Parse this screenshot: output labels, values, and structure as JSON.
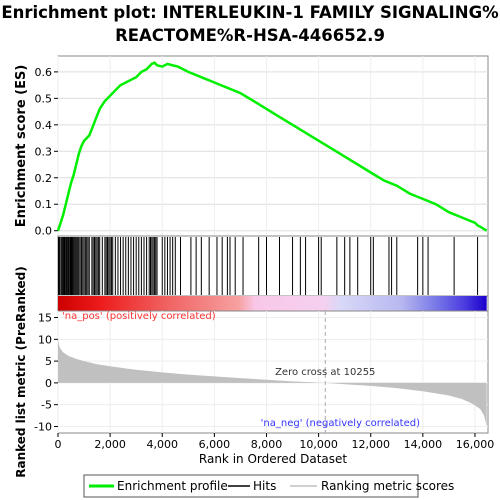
{
  "chart_data": {
    "type": "line",
    "title_line1": "Enrichment plot: INTERLEUKIN-1 FAMILY SIGNALING%",
    "title_line2": "REACTOME%R-HSA-446652.9",
    "top_panel": {
      "ylabel": "Enrichment score (ES)",
      "ylim": [
        -0.02,
        0.66
      ],
      "yticks": [
        0.0,
        0.1,
        0.2,
        0.3,
        0.4,
        0.5,
        0.6
      ],
      "ytick_labels": [
        "0.0",
        "0.1",
        "0.2",
        "0.3",
        "0.4",
        "0.5",
        "0.6"
      ],
      "series": [
        {
          "name": "Enrichment profile",
          "color": "#00ee00",
          "x": [
            0,
            100,
            200,
            300,
            400,
            500,
            600,
            700,
            800,
            900,
            1000,
            1200,
            1400,
            1600,
            1800,
            2000,
            2200,
            2400,
            2600,
            2800,
            3000,
            3200,
            3400,
            3600,
            3700,
            3800,
            4000,
            4200,
            4400,
            4600,
            5000,
            5500,
            6000,
            6500,
            7000,
            7500,
            8000,
            8500,
            9000,
            9500,
            10000,
            10500,
            11000,
            11500,
            12000,
            12500,
            13000,
            13500,
            14000,
            14500,
            15000,
            15500,
            16000,
            16100,
            16200,
            16450
          ],
          "y": [
            0.0,
            0.03,
            0.06,
            0.1,
            0.14,
            0.18,
            0.21,
            0.25,
            0.29,
            0.32,
            0.34,
            0.36,
            0.41,
            0.46,
            0.49,
            0.51,
            0.53,
            0.55,
            0.56,
            0.57,
            0.58,
            0.6,
            0.61,
            0.63,
            0.635,
            0.625,
            0.62,
            0.63,
            0.625,
            0.62,
            0.6,
            0.58,
            0.56,
            0.54,
            0.52,
            0.49,
            0.46,
            0.43,
            0.4,
            0.37,
            0.34,
            0.31,
            0.28,
            0.25,
            0.22,
            0.19,
            0.17,
            0.14,
            0.12,
            0.1,
            0.07,
            0.05,
            0.03,
            0.02,
            0.015,
            0.0
          ]
        }
      ]
    },
    "hits_panel": {
      "hit_positions": [
        20,
        60,
        110,
        150,
        190,
        230,
        260,
        300,
        330,
        360,
        400,
        430,
        470,
        500,
        530,
        560,
        600,
        640,
        680,
        720,
        760,
        800,
        850,
        900,
        950,
        1000,
        1050,
        1100,
        1150,
        1200,
        1300,
        1350,
        1400,
        1450,
        1500,
        1550,
        1600,
        1700,
        1800,
        1850,
        1900,
        1950,
        2000,
        2050,
        2100,
        2200,
        2300,
        2400,
        2500,
        2600,
        2700,
        2800,
        2900,
        3000,
        3100,
        3200,
        3300,
        3400,
        3500,
        3550,
        3600,
        3650,
        3700,
        3750,
        3800,
        4000,
        4100,
        4200,
        4300,
        4400,
        4500,
        4700,
        5100,
        5300,
        5500,
        5800,
        6100,
        6300,
        6500,
        6600,
        6800,
        7100,
        7700,
        8000,
        8500,
        9000,
        9300,
        9500,
        10000,
        10100,
        10700,
        11000,
        11200,
        11500,
        12000,
        12100,
        12700,
        12800,
        13000,
        13800,
        14000,
        14200,
        15200,
        16100
      ]
    },
    "rank_panel": {
      "ylabel": "Ranked list metric (PreRanked)",
      "xlabel": "Rank in Ordered Dataset",
      "xlim": [
        0,
        16500
      ],
      "xticks": [
        0,
        2000,
        4000,
        6000,
        8000,
        10000,
        12000,
        14000,
        16000
      ],
      "xtick_labels": [
        "0",
        "2,000",
        "4,000",
        "6,000",
        "8,000",
        "10,000",
        "12,000",
        "14,000",
        "16,000"
      ],
      "ylim": [
        -11.5,
        16.5
      ],
      "yticks": [
        15,
        10,
        5,
        0,
        -5,
        -10
      ],
      "ytick_labels": [
        "15",
        "10",
        "5",
        "0",
        "-5",
        "-10"
      ],
      "metric_x": [
        0,
        50,
        100,
        200,
        400,
        700,
        1000,
        1500,
        2000,
        3000,
        4000,
        5000,
        6000,
        7000,
        8000,
        9000,
        10255,
        11000,
        12000,
        13000,
        14000,
        15000,
        15500,
        15900,
        16200,
        16350,
        16450
      ],
      "metric_y": [
        10.0,
        8.5,
        7.8,
        7.0,
        6.2,
        5.5,
        5.0,
        4.3,
        3.8,
        3.0,
        2.4,
        1.9,
        1.5,
        1.1,
        0.7,
        0.35,
        0.0,
        -0.3,
        -0.7,
        -1.2,
        -1.9,
        -2.9,
        -3.7,
        -4.8,
        -6.0,
        -7.5,
        -10.0
      ],
      "zero_cross_rank": 10255,
      "zero_cross_label": "Zero cross at 10255",
      "pos_label": "'na_pos' (positively correlated)",
      "neg_label": "'na_neg' (negatively correlated)"
    },
    "legend": {
      "entries": [
        {
          "label": "Enrichment profile",
          "color": "#00ee00"
        },
        {
          "label": "Hits",
          "color": "#000000"
        },
        {
          "label": "Ranking metric scores",
          "color": "#c0c0c0"
        }
      ]
    },
    "colors": {
      "pos_label": "#ff3333",
      "neg_label": "#3333ff",
      "metric_fill": "#c0c0c0"
    }
  }
}
